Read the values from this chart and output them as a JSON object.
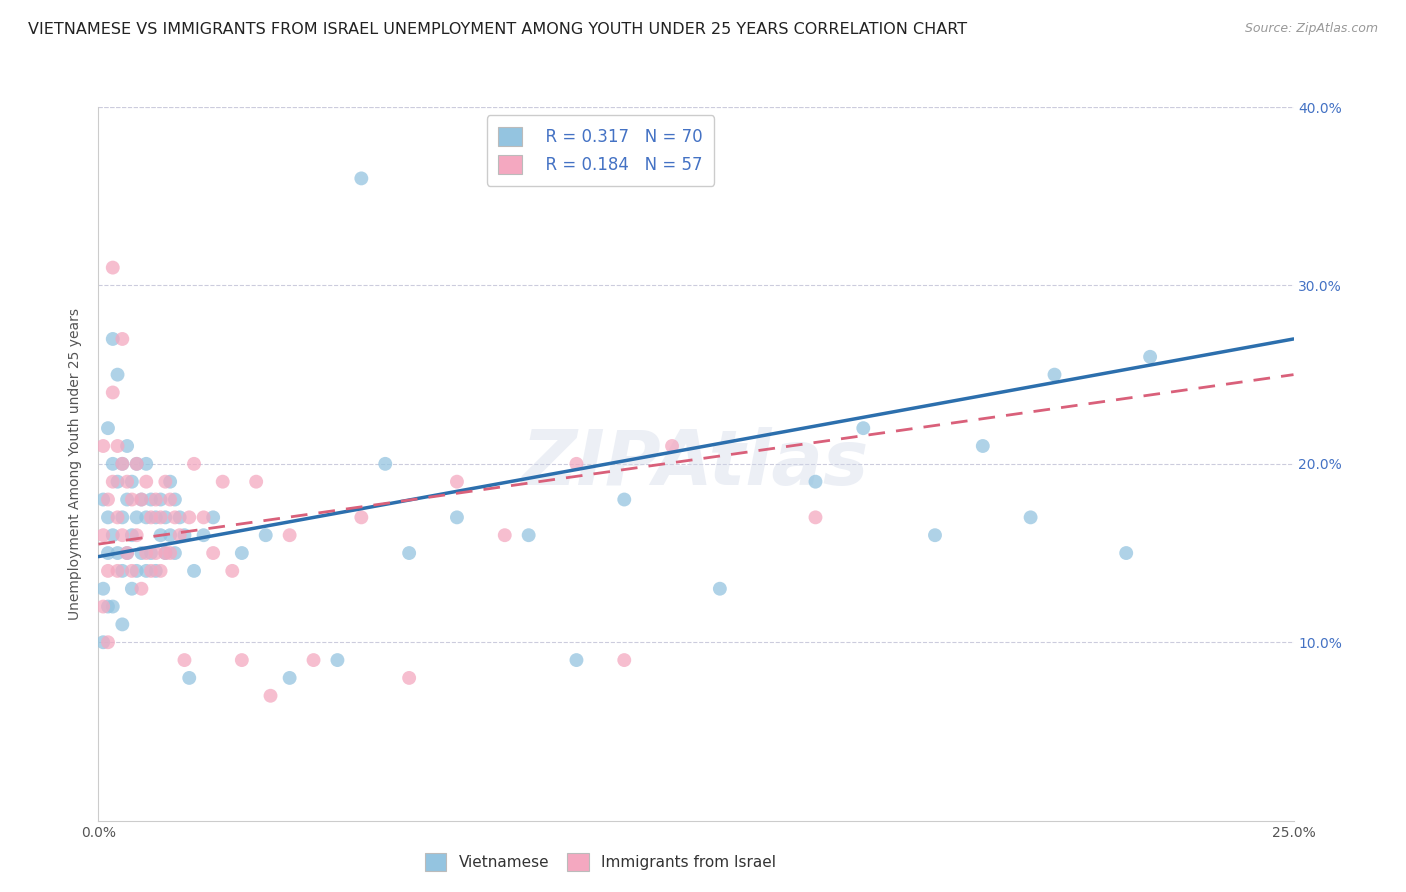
{
  "title": "VIETNAMESE VS IMMIGRANTS FROM ISRAEL UNEMPLOYMENT AMONG YOUTH UNDER 25 YEARS CORRELATION CHART",
  "source": "Source: ZipAtlas.com",
  "ylabel": "Unemployment Among Youth under 25 years",
  "xlim": [
    0,
    0.25
  ],
  "ylim": [
    0,
    0.4
  ],
  "xtick_labels": [
    "0.0%",
    "",
    "",
    "",
    "",
    "25.0%"
  ],
  "xtick_vals": [
    0,
    0.05,
    0.1,
    0.15,
    0.2,
    0.25
  ],
  "right_ytick_labels": [
    "10.0%",
    "20.0%",
    "30.0%",
    "40.0%"
  ],
  "right_ytick_vals": [
    0.1,
    0.2,
    0.3,
    0.4
  ],
  "legend_r1": "R = 0.317",
  "legend_n1": "N = 70",
  "legend_r2": "R = 0.184",
  "legend_n2": "N = 57",
  "color_blue": "#94c4e0",
  "color_pink": "#f4a8c0",
  "line_color_blue": "#2c6fad",
  "line_color_pink": "#d9607a",
  "background_color": "#ffffff",
  "grid_color": "#ccccdd",
  "title_fontsize": 11.5,
  "axis_label_fontsize": 10,
  "tick_fontsize": 10,
  "watermark_text": "ZIPAtlas",
  "viet_line_x0": 0.0,
  "viet_line_y0": 0.148,
  "viet_line_x1": 0.25,
  "viet_line_y1": 0.27,
  "isr_line_x0": 0.0,
  "isr_line_y0": 0.155,
  "isr_line_x1": 0.25,
  "isr_line_y1": 0.25,
  "vietnamese_x": [
    0.001,
    0.001,
    0.001,
    0.002,
    0.002,
    0.002,
    0.002,
    0.003,
    0.003,
    0.003,
    0.003,
    0.004,
    0.004,
    0.004,
    0.005,
    0.005,
    0.005,
    0.005,
    0.006,
    0.006,
    0.006,
    0.007,
    0.007,
    0.007,
    0.008,
    0.008,
    0.008,
    0.009,
    0.009,
    0.01,
    0.01,
    0.01,
    0.011,
    0.011,
    0.012,
    0.012,
    0.013,
    0.013,
    0.014,
    0.014,
    0.015,
    0.015,
    0.016,
    0.016,
    0.017,
    0.018,
    0.019,
    0.02,
    0.022,
    0.024,
    0.03,
    0.035,
    0.04,
    0.05,
    0.055,
    0.06,
    0.065,
    0.075,
    0.09,
    0.1,
    0.11,
    0.13,
    0.15,
    0.16,
    0.175,
    0.185,
    0.195,
    0.2,
    0.215,
    0.22
  ],
  "vietnamese_y": [
    0.18,
    0.13,
    0.1,
    0.22,
    0.17,
    0.15,
    0.12,
    0.27,
    0.2,
    0.16,
    0.12,
    0.25,
    0.19,
    0.15,
    0.2,
    0.17,
    0.14,
    0.11,
    0.21,
    0.18,
    0.15,
    0.19,
    0.16,
    0.13,
    0.2,
    0.17,
    0.14,
    0.18,
    0.15,
    0.2,
    0.17,
    0.14,
    0.18,
    0.15,
    0.17,
    0.14,
    0.18,
    0.16,
    0.17,
    0.15,
    0.19,
    0.16,
    0.18,
    0.15,
    0.17,
    0.16,
    0.08,
    0.14,
    0.16,
    0.17,
    0.15,
    0.16,
    0.08,
    0.09,
    0.36,
    0.2,
    0.15,
    0.17,
    0.16,
    0.09,
    0.18,
    0.13,
    0.19,
    0.22,
    0.16,
    0.21,
    0.17,
    0.25,
    0.15,
    0.26
  ],
  "israel_x": [
    0.001,
    0.001,
    0.001,
    0.002,
    0.002,
    0.002,
    0.003,
    0.003,
    0.003,
    0.004,
    0.004,
    0.004,
    0.005,
    0.005,
    0.005,
    0.006,
    0.006,
    0.007,
    0.007,
    0.008,
    0.008,
    0.009,
    0.009,
    0.01,
    0.01,
    0.011,
    0.011,
    0.012,
    0.012,
    0.013,
    0.013,
    0.014,
    0.014,
    0.015,
    0.015,
    0.016,
    0.017,
    0.018,
    0.019,
    0.02,
    0.022,
    0.024,
    0.026,
    0.028,
    0.03,
    0.033,
    0.036,
    0.04,
    0.045,
    0.055,
    0.065,
    0.075,
    0.085,
    0.1,
    0.11,
    0.12,
    0.15
  ],
  "israel_y": [
    0.16,
    0.21,
    0.12,
    0.18,
    0.14,
    0.1,
    0.31,
    0.24,
    0.19,
    0.17,
    0.21,
    0.14,
    0.27,
    0.2,
    0.16,
    0.19,
    0.15,
    0.18,
    0.14,
    0.2,
    0.16,
    0.18,
    0.13,
    0.19,
    0.15,
    0.17,
    0.14,
    0.18,
    0.15,
    0.17,
    0.14,
    0.19,
    0.15,
    0.18,
    0.15,
    0.17,
    0.16,
    0.09,
    0.17,
    0.2,
    0.17,
    0.15,
    0.19,
    0.14,
    0.09,
    0.19,
    0.07,
    0.16,
    0.09,
    0.17,
    0.08,
    0.19,
    0.16,
    0.2,
    0.09,
    0.21,
    0.17
  ]
}
